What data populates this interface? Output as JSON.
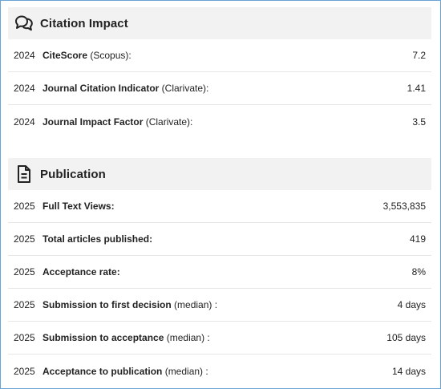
{
  "citation": {
    "title": "Citation Impact",
    "icon": "quote-bubbles-icon",
    "rows": [
      {
        "year": "2024",
        "label": "CiteScore",
        "note": " (Scopus):",
        "value": "7.2"
      },
      {
        "year": "2024",
        "label": "Journal Citation Indicator",
        "note": " (Clarivate):",
        "value": "1.41"
      },
      {
        "year": "2024",
        "label": "Journal Impact Factor",
        "note": " (Clarivate):",
        "value": "3.5"
      }
    ]
  },
  "publication": {
    "title": "Publication",
    "icon": "document-icon",
    "rows": [
      {
        "year": "2025",
        "label": "Full Text Views:",
        "note": "",
        "value": "3,553,835"
      },
      {
        "year": "2025",
        "label": "Total articles published:",
        "note": "",
        "value": "419"
      },
      {
        "year": "2025",
        "label": "Acceptance rate:",
        "note": "",
        "value": "8%"
      },
      {
        "year": "2025",
        "label": "Submission to first decision",
        "note": " (median) :",
        "value": "4 days"
      },
      {
        "year": "2025",
        "label": "Submission to acceptance",
        "note": " (median) :",
        "value": "105 days"
      },
      {
        "year": "2025",
        "label": "Acceptance to publication",
        "note": " (median) :",
        "value": "14 days"
      }
    ]
  }
}
